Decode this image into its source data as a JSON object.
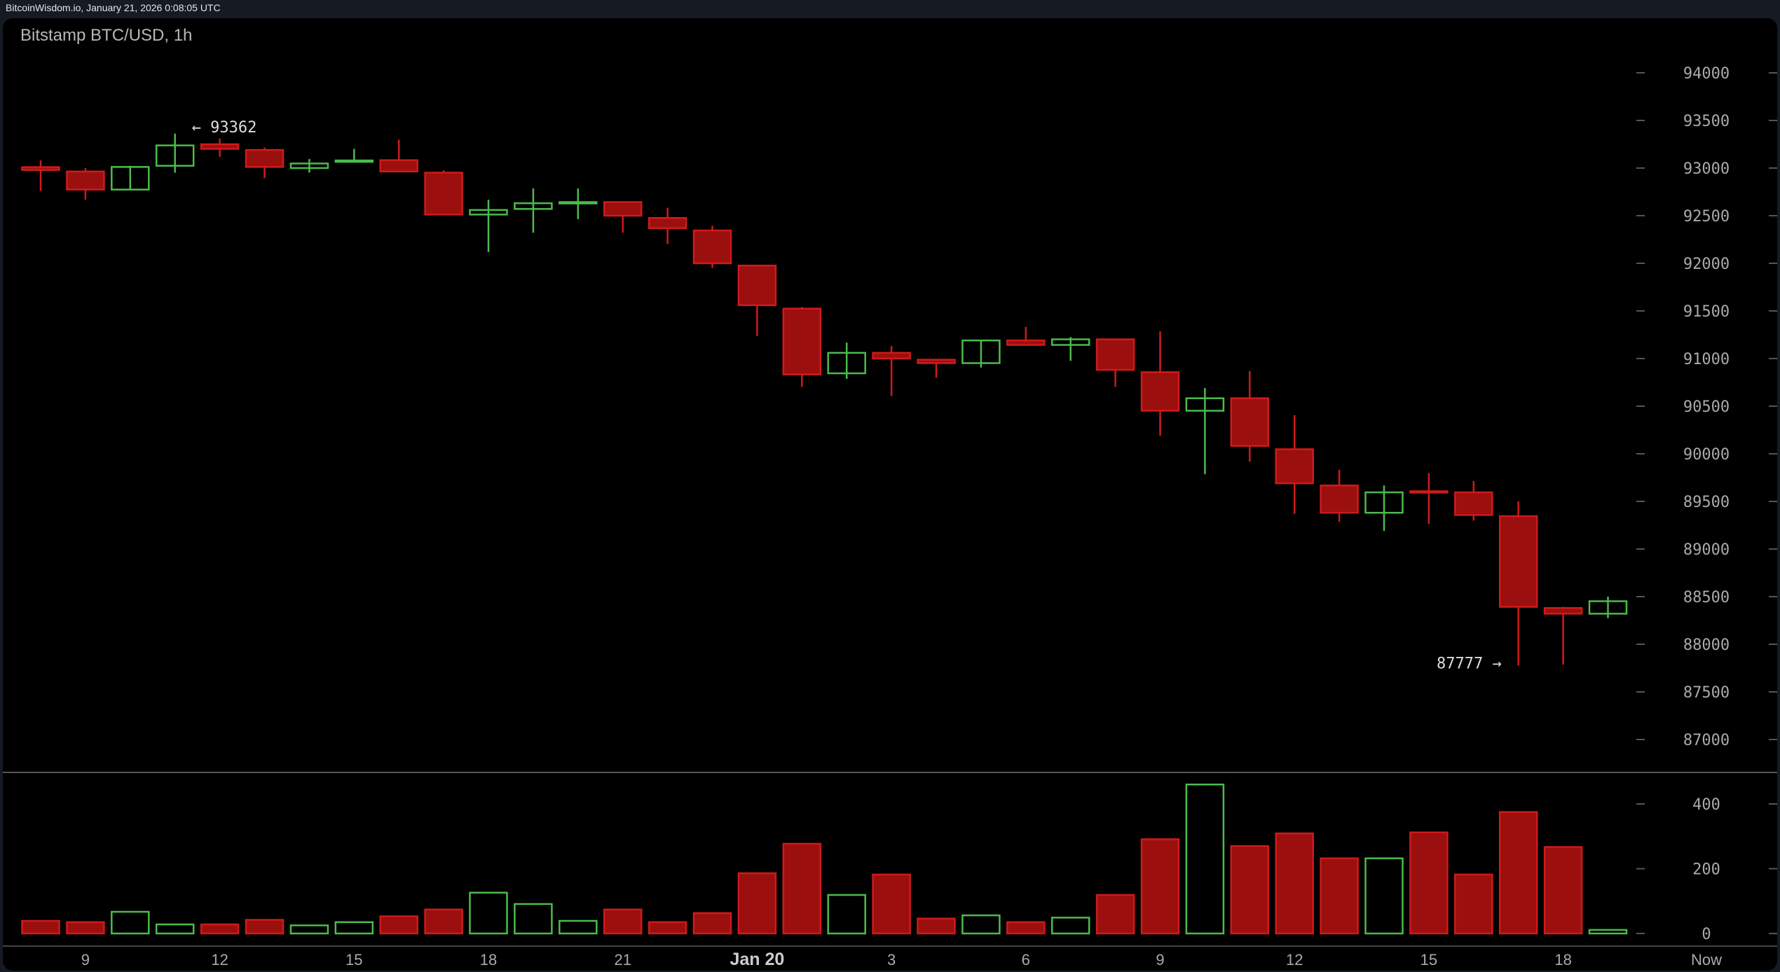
{
  "header": {
    "source_timestamp": "BitcoinWisdom.io, January 21, 2026 0:08:05 UTC"
  },
  "chart_data": {
    "type": "candlestick",
    "title": "Bitstamp BTC/USD, 1h",
    "price_axis": {
      "ylim": [
        86600,
        94300
      ],
      "ticks": [
        94000,
        93500,
        93000,
        92500,
        92000,
        91500,
        91000,
        90500,
        90000,
        89500,
        89000,
        88500,
        88000,
        87500,
        87000
      ],
      "position": "right"
    },
    "volume_axis": {
      "ylim": [
        0,
        480
      ],
      "ticks": [
        400,
        200,
        0
      ],
      "position": "right"
    },
    "x_tick_labels": [
      {
        "index": 1,
        "label": "9"
      },
      {
        "index": 4,
        "label": "12"
      },
      {
        "index": 7,
        "label": "15"
      },
      {
        "index": 10,
        "label": "18"
      },
      {
        "index": 13,
        "label": "21"
      },
      {
        "index": 16,
        "label": "Jan 20"
      },
      {
        "index": 19,
        "label": "3"
      },
      {
        "index": 22,
        "label": "6"
      },
      {
        "index": 25,
        "label": "9"
      },
      {
        "index": 28,
        "label": "12"
      },
      {
        "index": 31,
        "label": "15"
      },
      {
        "index": 34,
        "label": "18"
      },
      {
        "index": 36,
        "label": "Now"
      }
    ],
    "annotations": [
      {
        "index": 3,
        "label": "← 93362",
        "value": 93362
      },
      {
        "index": 33,
        "label": "87777 →",
        "value": 87777
      }
    ],
    "colors": {
      "up": "#4cbb4c",
      "down_fill": "#9b0f0f",
      "down_edge": "#d01a1a"
    },
    "candles": [
      {
        "o": 93010,
        "h": 93080,
        "l": 92760,
        "c": 92980,
        "v": 39
      },
      {
        "o": 92964,
        "h": 93000,
        "l": 92667,
        "c": 92774,
        "v": 35
      },
      {
        "o": 92774,
        "h": 93024,
        "l": 92770,
        "c": 93012,
        "v": 67
      },
      {
        "o": 93024,
        "h": 93362,
        "l": 92952,
        "c": 93238,
        "v": 28
      },
      {
        "o": 93250,
        "h": 93310,
        "l": 93119,
        "c": 93202,
        "v": 28
      },
      {
        "o": 93190,
        "h": 93214,
        "l": 92893,
        "c": 93012,
        "v": 42
      },
      {
        "o": 93000,
        "h": 93095,
        "l": 92952,
        "c": 93048,
        "v": 25
      },
      {
        "o": 93070,
        "h": 93202,
        "l": 93065,
        "c": 93080,
        "v": 35
      },
      {
        "o": 93083,
        "h": 93298,
        "l": 92964,
        "c": 92964,
        "v": 53
      },
      {
        "o": 92952,
        "h": 92976,
        "l": 92512,
        "c": 92512,
        "v": 74
      },
      {
        "o": 92512,
        "h": 92667,
        "l": 92119,
        "c": 92560,
        "v": 126
      },
      {
        "o": 92571,
        "h": 92786,
        "l": 92321,
        "c": 92631,
        "v": 91
      },
      {
        "o": 92631,
        "h": 92786,
        "l": 92464,
        "c": 92643,
        "v": 39
      },
      {
        "o": 92643,
        "h": 92643,
        "l": 92321,
        "c": 92500,
        "v": 74
      },
      {
        "o": 92476,
        "h": 92583,
        "l": 92202,
        "c": 92369,
        "v": 35
      },
      {
        "o": 92345,
        "h": 92393,
        "l": 91952,
        "c": 92000,
        "v": 63
      },
      {
        "o": 91976,
        "h": 91976,
        "l": 91238,
        "c": 91560,
        "v": 186
      },
      {
        "o": 91524,
        "h": 91540,
        "l": 90702,
        "c": 90833,
        "v": 277
      },
      {
        "o": 90845,
        "h": 91167,
        "l": 90786,
        "c": 91060,
        "v": 119
      },
      {
        "o": 91060,
        "h": 91131,
        "l": 90607,
        "c": 91000,
        "v": 182
      },
      {
        "o": 90988,
        "h": 90988,
        "l": 90798,
        "c": 90952,
        "v": 46
      },
      {
        "o": 90952,
        "h": 91190,
        "l": 90905,
        "c": 91190,
        "v": 56
      },
      {
        "o": 91190,
        "h": 91333,
        "l": 91143,
        "c": 91143,
        "v": 35
      },
      {
        "o": 91143,
        "h": 91226,
        "l": 90976,
        "c": 91202,
        "v": 49
      },
      {
        "o": 91202,
        "h": 91202,
        "l": 90702,
        "c": 90881,
        "v": 119
      },
      {
        "o": 90857,
        "h": 91286,
        "l": 90190,
        "c": 90452,
        "v": 291
      },
      {
        "o": 90452,
        "h": 90690,
        "l": 89786,
        "c": 90583,
        "v": 460
      },
      {
        "o": 90583,
        "h": 90869,
        "l": 89917,
        "c": 90083,
        "v": 270
      },
      {
        "o": 90048,
        "h": 90405,
        "l": 89369,
        "c": 89690,
        "v": 309
      },
      {
        "o": 89667,
        "h": 89833,
        "l": 89286,
        "c": 89381,
        "v": 232
      },
      {
        "o": 89381,
        "h": 89667,
        "l": 89190,
        "c": 89595,
        "v": 232
      },
      {
        "o": 89607,
        "h": 89798,
        "l": 89262,
        "c": 89595,
        "v": 312
      },
      {
        "o": 89595,
        "h": 89714,
        "l": 89298,
        "c": 89357,
        "v": 182
      },
      {
        "o": 89345,
        "h": 89500,
        "l": 87777,
        "c": 88393,
        "v": 375
      },
      {
        "o": 88381,
        "h": 88393,
        "l": 87786,
        "c": 88321,
        "v": 267
      },
      {
        "o": 88321,
        "h": 88500,
        "l": 88274,
        "c": 88452,
        "v": 11
      }
    ]
  }
}
